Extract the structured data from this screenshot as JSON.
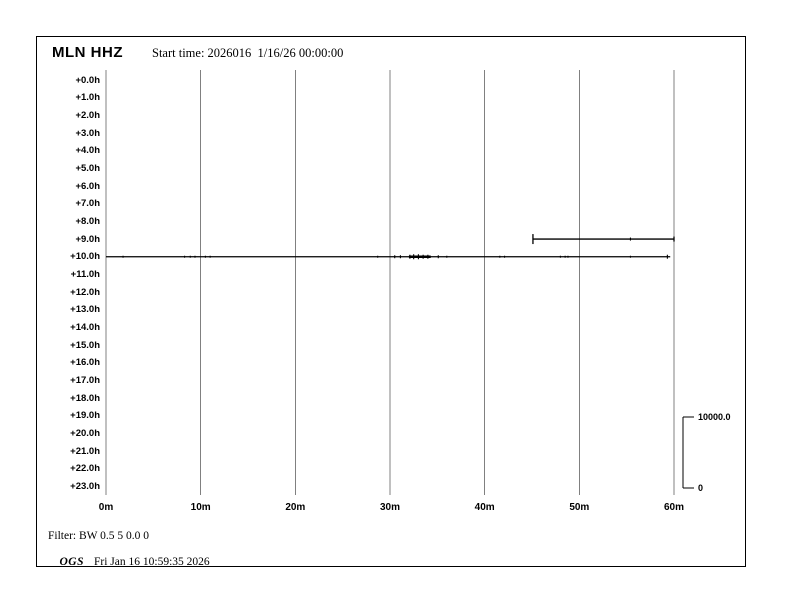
{
  "header": {
    "station": "MLN HHZ",
    "start_time": "Start time: 2026016  1/16/26 00:00:00"
  },
  "colors": {
    "grid": "#808080",
    "trace": "#000000",
    "text": "#000000",
    "background": "#ffffff"
  },
  "chart_data": {
    "type": "line",
    "title": "MLN HHZ helicorder (24 hourly rows, 60 minutes per row)",
    "x_axis": {
      "unit": "minutes",
      "range": [
        0,
        60
      ],
      "ticks": [
        "0m",
        "10m",
        "20m",
        "30m",
        "40m",
        "50m",
        "60m"
      ],
      "grid": true
    },
    "y_axis": {
      "unit": "hours offset from start time",
      "rows": 24,
      "row_labels": [
        "+0.0h",
        "+1.0h",
        "+2.0h",
        "+3.0h",
        "+4.0h",
        "+5.0h",
        "+6.0h",
        "+7.0h",
        "+8.0h",
        "+9.0h",
        "+10.0h",
        "+11.0h",
        "+12.0h",
        "+13.0h",
        "+14.0h",
        "+15.0h",
        "+16.0h",
        "+17.0h",
        "+18.0h",
        "+19.0h",
        "+20.0h",
        "+21.0h",
        "+22.0h",
        "+23.0h"
      ]
    },
    "amplitude_scale": {
      "max": 10000.0,
      "min": 0,
      "max_label": "10000.0",
      "min_label": "0"
    },
    "traces": [
      {
        "row_hour": 9,
        "start_minute": 45.1,
        "end_minute": 60.0,
        "start_cap": true,
        "end_cap": true,
        "blips": [
          [
            55.4,
            1.5
          ]
        ],
        "thick_segments": []
      },
      {
        "row_hour": 10,
        "start_minute": 0.0,
        "end_minute": 59.6,
        "start_cap": false,
        "end_cap": false,
        "blips": [
          [
            1.8,
            1
          ],
          [
            8.3,
            1
          ],
          [
            8.9,
            1
          ],
          [
            9.4,
            1
          ],
          [
            10.5,
            1
          ],
          [
            11.0,
            1
          ],
          [
            28.7,
            1
          ],
          [
            30.5,
            1.5
          ],
          [
            31.1,
            1.5
          ],
          [
            32.1,
            2
          ],
          [
            32.5,
            2.5
          ],
          [
            33.0,
            2.5
          ],
          [
            33.5,
            2
          ],
          [
            34.0,
            2
          ],
          [
            35.1,
            1.5
          ],
          [
            36.0,
            1
          ],
          [
            41.6,
            1
          ],
          [
            42.1,
            1
          ],
          [
            48.0,
            1
          ],
          [
            48.5,
            1
          ],
          [
            48.8,
            1
          ],
          [
            55.4,
            1
          ],
          [
            59.3,
            2
          ]
        ],
        "thick_segments": [
          [
            32.0,
            34.3
          ]
        ]
      }
    ]
  },
  "footer": {
    "filter": "Filter: BW 0.5 5 0.0 0",
    "agency": "OGS",
    "timestamp": "Fri Jan 16 10:59:35 2026"
  }
}
